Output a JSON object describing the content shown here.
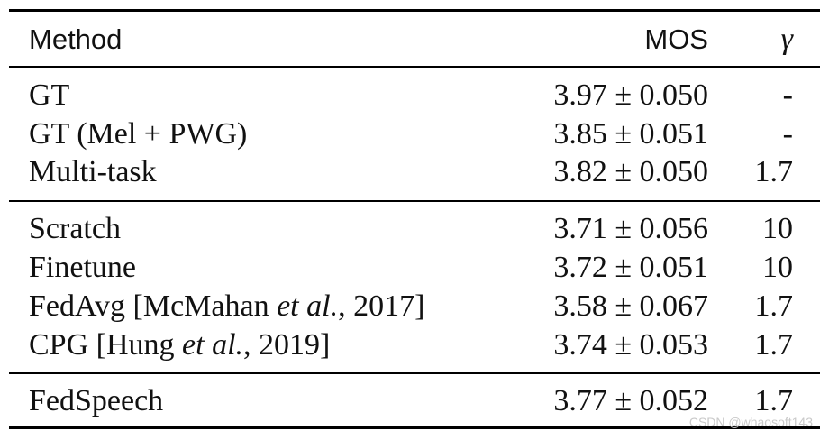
{
  "table": {
    "header": {
      "method": "Method",
      "mos": "MOS",
      "gamma": "γ"
    },
    "rows": [
      {
        "method": "GT",
        "mos": "3.97 ± 0.050",
        "gamma": "-"
      },
      {
        "method": "GT (Mel + PWG)",
        "mos": "3.85 ± 0.051",
        "gamma": "-"
      },
      {
        "method": "Multi-task",
        "mos": "3.82 ± 0.050",
        "gamma": "1.7"
      },
      {
        "method": "Scratch",
        "mos": "3.71 ± 0.056",
        "gamma": "10"
      },
      {
        "method": "Finetune",
        "mos": "3.72 ± 0.051",
        "gamma": "10"
      },
      {
        "method_prefix": "FedAvg [McMahan ",
        "method_italic": "et al.",
        "method_suffix": ", 2017]",
        "mos": "3.58 ± 0.067",
        "gamma": "1.7"
      },
      {
        "method_prefix": "CPG [Hung ",
        "method_italic": "et al.",
        "method_suffix": ", 2019]",
        "mos": "3.74 ± 0.053",
        "gamma": "1.7"
      },
      {
        "method": "FedSpeech",
        "mos": "3.77 ± 0.052",
        "gamma": "1.7"
      }
    ]
  },
  "watermark": "CSDN @whaosoft143"
}
